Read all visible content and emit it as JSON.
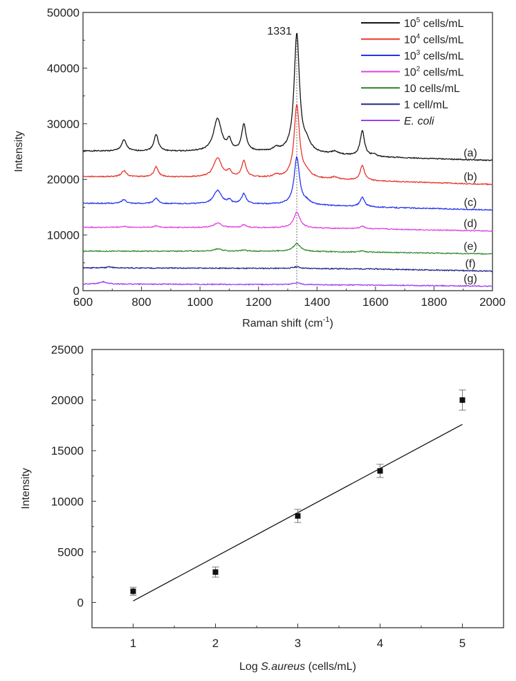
{
  "chart_data": [
    {
      "type": "line",
      "title": "",
      "xlabel": "Raman shift (cm",
      "xlabel_sup": "-1",
      "xlabel_end": ")",
      "ylabel": "Intensity",
      "xlim": [
        600,
        2000
      ],
      "ylim": [
        0,
        50000
      ],
      "xticks": [
        600,
        800,
        1000,
        1200,
        1400,
        1600,
        1800,
        2000
      ],
      "yticks": [
        0,
        10000,
        20000,
        30000,
        40000,
        50000
      ],
      "annotation": {
        "text": "1331",
        "x": 1331
      },
      "legend_position": "top-right",
      "series": [
        {
          "name": "10^5 cells/mL",
          "base": "10",
          "exp": "5",
          "rest": " cells/mL",
          "tag": "(a)",
          "color": "#111111",
          "baseline": [
            [
              600,
              25100
            ],
            [
              1300,
              24900
            ],
            [
              1600,
              24000
            ],
            [
              2000,
              23400
            ]
          ],
          "peaks": [
            [
              740,
              2000,
              10
            ],
            [
              850,
              3000,
              9
            ],
            [
              1060,
              5900,
              16
            ],
            [
              1100,
              1800,
              8
            ],
            [
              1150,
              4800,
              9
            ],
            [
              1260,
              600,
              10
            ],
            [
              1331,
              21200,
              11
            ],
            [
              1365,
              1500,
              15
            ],
            [
              1460,
              500,
              12
            ],
            [
              1555,
              4500,
              9
            ],
            [
              1595,
              400,
              10
            ]
          ]
        },
        {
          "name": "10^4 cells/mL",
          "base": "10",
          "exp": "4",
          "rest": " cells/mL",
          "tag": "(b)",
          "color": "#e8332a",
          "baseline": [
            [
              600,
              20500
            ],
            [
              1300,
              20300
            ],
            [
              1600,
              19700
            ],
            [
              2000,
              19100
            ]
          ],
          "peaks": [
            [
              740,
              1100,
              10
            ],
            [
              850,
              1800,
              9
            ],
            [
              1060,
              3500,
              16
            ],
            [
              1100,
              1000,
              8
            ],
            [
              1150,
              2900,
              9
            ],
            [
              1260,
              400,
              10
            ],
            [
              1331,
              13000,
              11
            ],
            [
              1365,
              900,
              15
            ],
            [
              1460,
              400,
              12
            ],
            [
              1555,
              2700,
              9
            ]
          ]
        },
        {
          "name": "10^3 cells/mL",
          "base": "10",
          "exp": "3",
          "rest": " cells/mL",
          "tag": "(c)",
          "color": "#2233ee",
          "baseline": [
            [
              600,
              15700
            ],
            [
              1300,
              15500
            ],
            [
              1600,
              15000
            ],
            [
              2000,
              14500
            ]
          ],
          "peaks": [
            [
              740,
              700,
              10
            ],
            [
              850,
              1000,
              9
            ],
            [
              1060,
              2400,
              16
            ],
            [
              1100,
              600,
              8
            ],
            [
              1150,
              1800,
              9
            ],
            [
              1331,
              8500,
              11
            ],
            [
              1365,
              500,
              15
            ],
            [
              1555,
              1700,
              9
            ]
          ]
        },
        {
          "name": "10^2 cells/mL",
          "base": "10",
          "exp": "2",
          "rest": " cells/mL",
          "tag": "(d)",
          "color": "#e040e0",
          "baseline": [
            [
              600,
              11400
            ],
            [
              1300,
              11300
            ],
            [
              1600,
              11100
            ],
            [
              2000,
              10700
            ]
          ],
          "peaks": [
            [
              740,
              150,
              10
            ],
            [
              850,
              300,
              9
            ],
            [
              1060,
              800,
              16
            ],
            [
              1150,
              500,
              9
            ],
            [
              1331,
              2800,
              13
            ],
            [
              1555,
              500,
              9
            ]
          ]
        },
        {
          "name": "10 cells/mL",
          "base": "10",
          "exp": "",
          "rest": " cells/mL",
          "tag": "(e)",
          "color": "#2e8b2e",
          "baseline": [
            [
              600,
              7100
            ],
            [
              1300,
              7100
            ],
            [
              1600,
              6900
            ],
            [
              2000,
              6600
            ]
          ],
          "peaks": [
            [
              1060,
              400,
              16
            ],
            [
              1150,
              200,
              9
            ],
            [
              1331,
              1400,
              14
            ],
            [
              1555,
              250,
              9
            ]
          ]
        },
        {
          "name": "1 cell/mL",
          "base": "1 cell/mL",
          "exp": "",
          "rest": "",
          "tag": "(f)",
          "color": "#22228a",
          "baseline": [
            [
              600,
              4100
            ],
            [
              1300,
              4000
            ],
            [
              1600,
              3900
            ],
            [
              2000,
              3500
            ]
          ],
          "peaks": [
            [
              690,
              200,
              10
            ],
            [
              1331,
              300,
              14
            ]
          ]
        },
        {
          "name": "E. coli",
          "base": "E. coli",
          "exp": "",
          "rest": "",
          "italic": true,
          "tag": "(g)",
          "color": "#9b3ff0",
          "baseline": [
            [
              600,
              1200
            ],
            [
              1300,
              1100
            ],
            [
              1600,
              1000
            ],
            [
              2000,
              800
            ]
          ],
          "peaks": [
            [
              670,
              400,
              15
            ],
            [
              1331,
              350,
              12
            ]
          ]
        }
      ]
    },
    {
      "type": "scatter",
      "title": "",
      "xlabel_pre": "Log ",
      "xlabel_italic": "S.aureus",
      "xlabel_post": " (cells/mL)",
      "ylabel": "Intensity",
      "xlim": [
        0.5,
        5.5
      ],
      "ylim": [
        -2500,
        25000
      ],
      "xticks": [
        1,
        2,
        3,
        4,
        5
      ],
      "yticks": [
        0,
        5000,
        10000,
        15000,
        20000,
        25000
      ],
      "points": [
        {
          "x": 1,
          "y": 1100,
          "err": 400
        },
        {
          "x": 2,
          "y": 3000,
          "err": 500
        },
        {
          "x": 3,
          "y": 8550,
          "err": 650
        },
        {
          "x": 4,
          "y": 13000,
          "err": 650
        },
        {
          "x": 5,
          "y": 20000,
          "err": 1000
        }
      ],
      "fit_line": {
        "x": [
          1,
          5
        ],
        "y": [
          150,
          17600
        ]
      }
    }
  ]
}
